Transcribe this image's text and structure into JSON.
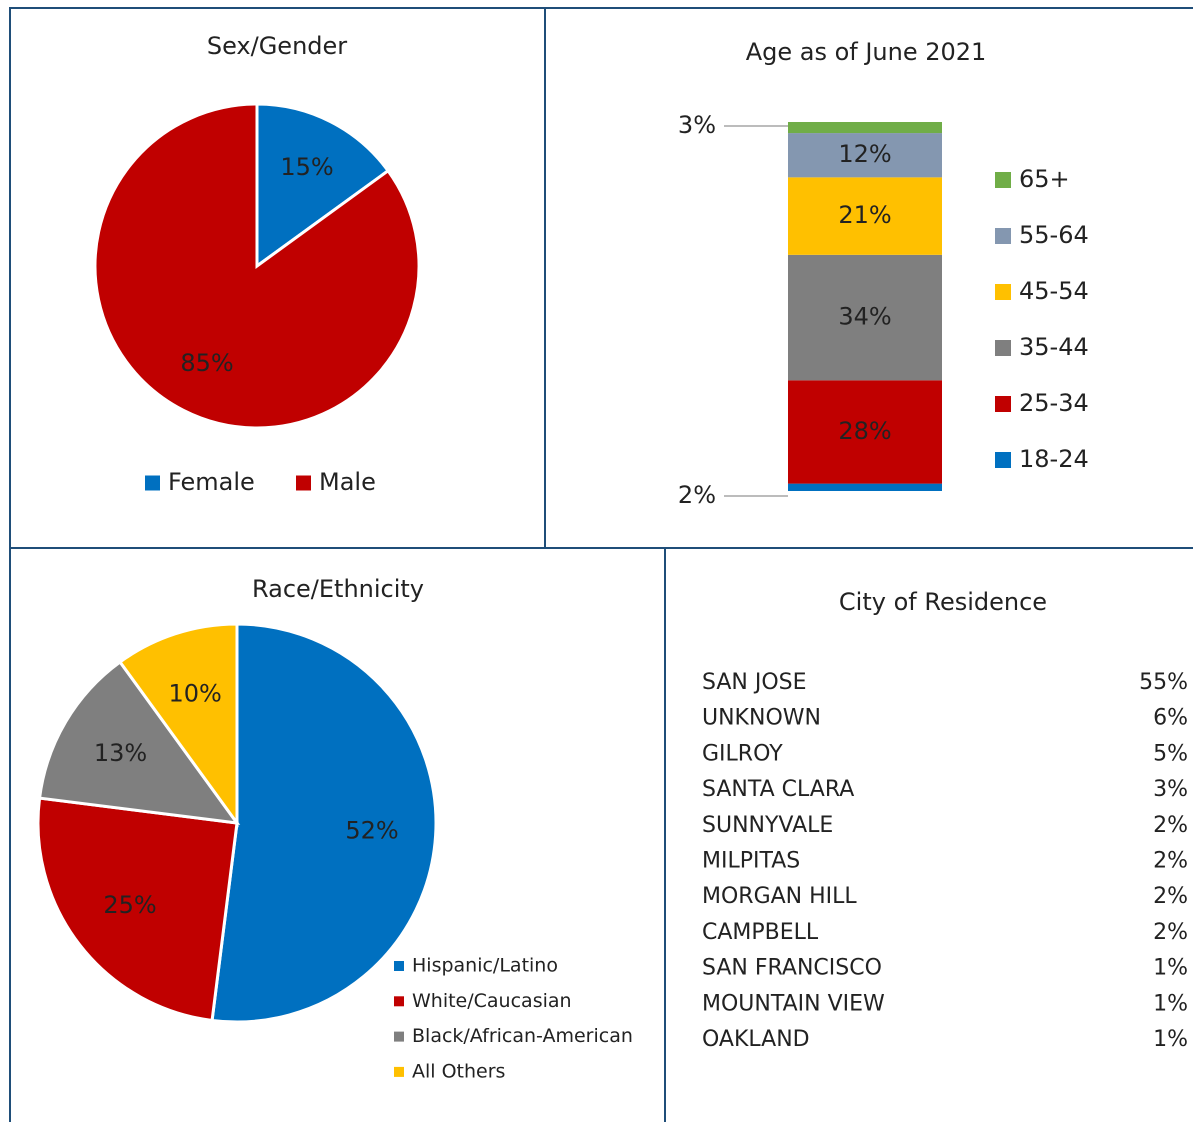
{
  "chart_data": [
    {
      "type": "pie",
      "title": "Sex/Gender",
      "categories": [
        "Female",
        "Male"
      ],
      "values": [
        15,
        85
      ],
      "value_labels": [
        "15%",
        "85%"
      ],
      "colors": [
        "#0070c0",
        "#c00000"
      ],
      "legend": "bottom"
    },
    {
      "type": "stacked_bar",
      "title": "Age as of June 2021",
      "series": [
        {
          "name": "18-24",
          "color": "#0070c0",
          "values": [
            2
          ],
          "value_labels": [
            "2%"
          ]
        },
        {
          "name": "25-34",
          "color": "#c00000",
          "values": [
            28
          ],
          "value_labels": [
            "28%"
          ]
        },
        {
          "name": "35-44",
          "color": "#7f7f7f",
          "values": [
            34
          ],
          "value_labels": [
            "34%"
          ]
        },
        {
          "name": "45-54",
          "color": "#ffc000",
          "values": [
            21
          ],
          "value_labels": [
            "21%"
          ]
        },
        {
          "name": "55-64",
          "color": "#8497b0",
          "values": [
            12
          ],
          "value_labels": [
            "12%"
          ]
        },
        {
          "name": "65+",
          "color": "#70ad47",
          "values": [
            3
          ],
          "value_labels": [
            "3%"
          ]
        }
      ],
      "legend": "right"
    },
    {
      "type": "pie",
      "title": "Race/Ethnicity",
      "categories": [
        "Hispanic/Latino",
        "White/Caucasian",
        "Black/African-American",
        "All Others"
      ],
      "values": [
        52,
        25,
        13,
        10
      ],
      "value_labels": [
        "52%",
        "25%",
        "13%",
        "10%"
      ],
      "colors": [
        "#0070c0",
        "#c00000",
        "#7f7f7f",
        "#ffc000"
      ],
      "legend": "bottom-right"
    }
  ],
  "city_table": {
    "title": "City of Residence",
    "rows": [
      [
        "SAN JOSE",
        "55%"
      ],
      [
        "UNKNOWN",
        "6%"
      ],
      [
        "GILROY",
        "5%"
      ],
      [
        "SANTA CLARA",
        "3%"
      ],
      [
        "SUNNYVALE",
        "2%"
      ],
      [
        "MILPITAS",
        "2%"
      ],
      [
        "MORGAN HILL",
        "2%"
      ],
      [
        "CAMPBELL",
        "2%"
      ],
      [
        "SAN FRANCISCO",
        "1%"
      ],
      [
        "MOUNTAIN VIEW",
        "1%"
      ],
      [
        "OAKLAND",
        "1%"
      ]
    ]
  }
}
